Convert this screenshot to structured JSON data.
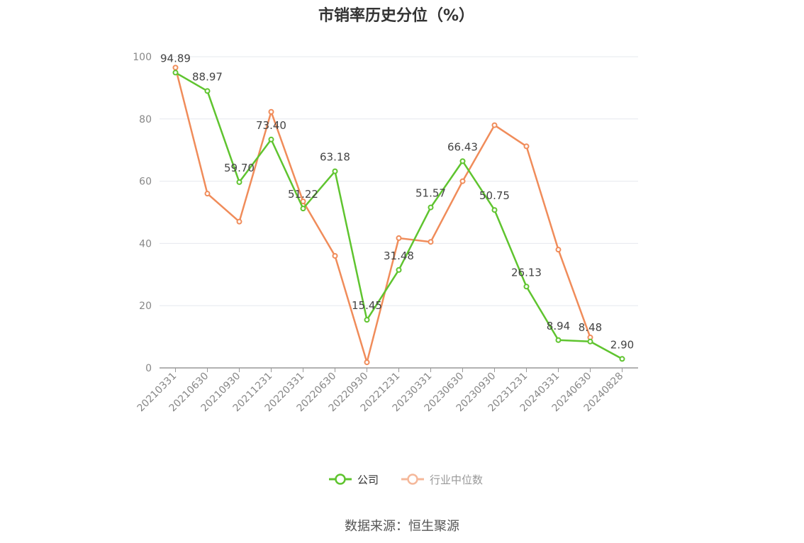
{
  "source": "数据来源：恒生聚源",
  "chart_data": {
    "type": "line",
    "title": "市销率历史分位（%）",
    "categories": [
      "20210331",
      "20210630",
      "20210930",
      "20211231",
      "20220331",
      "20220630",
      "20220930",
      "20221231",
      "20230331",
      "20230630",
      "20230930",
      "20231231",
      "20240331",
      "20240630",
      "20240828"
    ],
    "ylim": [
      0,
      100
    ],
    "yticks": [
      0,
      20,
      40,
      60,
      80,
      100
    ],
    "grid": true,
    "legend_position": "bottom",
    "series": [
      {
        "name": "公司",
        "color": "#5fc42f",
        "show_labels": true,
        "values": [
          94.89,
          88.97,
          59.7,
          73.4,
          51.22,
          63.18,
          15.45,
          31.48,
          51.57,
          66.43,
          50.75,
          26.13,
          8.94,
          8.48,
          2.9
        ],
        "labels": [
          "94.89",
          "88.97",
          "59.70",
          "73.40",
          "51.22",
          "63.18",
          "15.45",
          "31.48",
          "51.57",
          "66.43",
          "50.75",
          "26.13",
          "8.94",
          "8.48",
          "2.90"
        ]
      },
      {
        "name": "行业中位数",
        "color": "#f08c5a",
        "legend_color": "#f5b89a",
        "show_labels": false,
        "values": [
          96.5,
          56.0,
          47.0,
          82.3,
          53.5,
          36.0,
          1.8,
          41.7,
          40.5,
          60.0,
          78.0,
          71.2,
          38.0,
          9.8,
          null
        ]
      }
    ]
  }
}
